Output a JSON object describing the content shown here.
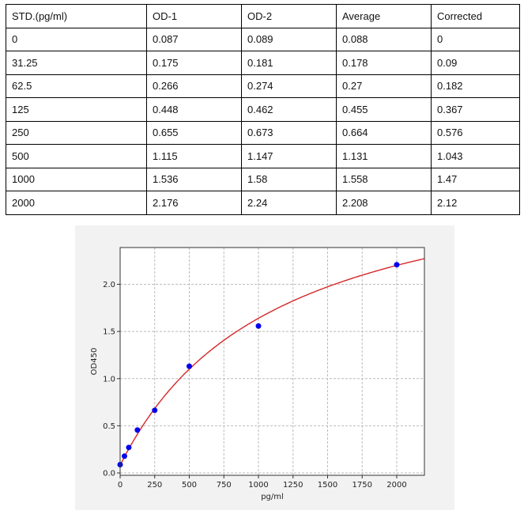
{
  "table": {
    "headers": [
      "STD.(pg/ml)",
      "OD-1",
      "OD-2",
      "Average",
      "Corrected"
    ],
    "rows": [
      [
        "0",
        "0.087",
        "0.089",
        "0.088",
        "0"
      ],
      [
        "31.25",
        "0.175",
        "0.181",
        "0.178",
        "0.09"
      ],
      [
        "62.5",
        "0.266",
        "0.274",
        "0.27",
        "0.182"
      ],
      [
        "125",
        "0.448",
        "0.462",
        "0.455",
        "0.367"
      ],
      [
        "250",
        "0.655",
        "0.673",
        "0.664",
        "0.576"
      ],
      [
        "500",
        "1.115",
        "1.147",
        "1.131",
        "1.043"
      ],
      [
        "1000",
        "1.536",
        "1.58",
        "1.558",
        "1.47"
      ],
      [
        "2000",
        "2.176",
        "2.24",
        "2.208",
        "2.12"
      ]
    ]
  },
  "chart_data": {
    "type": "scatter",
    "title": "",
    "xlabel": "pg/ml",
    "ylabel": "OD450",
    "x": [
      0,
      31.25,
      62.5,
      125,
      250,
      500,
      1000,
      2000
    ],
    "y": [
      0.088,
      0.178,
      0.27,
      0.455,
      0.664,
      1.131,
      1.558,
      2.208
    ],
    "xlim": [
      0,
      2200
    ],
    "ylim": [
      -0.025,
      2.39
    ],
    "xticks": [
      0,
      250,
      500,
      750,
      1000,
      1250,
      1500,
      1750,
      2000
    ],
    "yticks": [
      0.0,
      0.5,
      1.0,
      1.5,
      2.0
    ],
    "grid": true,
    "point_color": "#0000ee",
    "curve_color": "#d62728",
    "fit": {
      "type": "hyperbolic",
      "a": 0.08,
      "V": 3.31,
      "K": 1122
    }
  }
}
